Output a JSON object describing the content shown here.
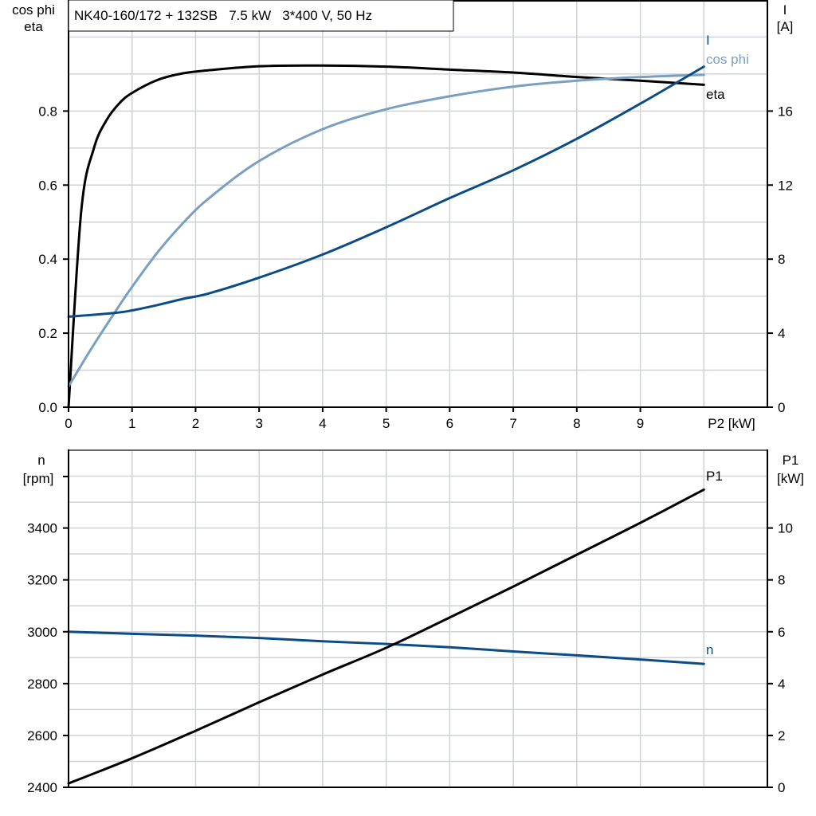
{
  "title": "NK40-160/172 + 132SB   7.5 kW   3*400 V, 50 Hz",
  "colors": {
    "black": "#000000",
    "dark_blue": "#0b4c87",
    "light_blue": "#7a9fc0",
    "grid": "#cfd2d6"
  },
  "chart_data": [
    {
      "type": "line",
      "title": "NK40-160/172 + 132SB   7.5 kW   3*400 V, 50 Hz",
      "xlabel": "P2 [kW]",
      "ylabel_left": [
        "cos phi",
        "eta"
      ],
      "ylabel_right": [
        "I",
        "[A]"
      ],
      "xlim": [
        0,
        11
      ],
      "ylim_left": [
        0,
        1.1
      ],
      "ylim_right": [
        0,
        22
      ],
      "x_ticks": [
        "0",
        "1",
        "2",
        "3",
        "4",
        "5",
        "6",
        "7",
        "8",
        "9"
      ],
      "y_ticks_left": [
        "0.0",
        "0.2",
        "0.4",
        "0.6",
        "0.8"
      ],
      "y_ticks_right": [
        "0",
        "4",
        "8",
        "12",
        "16"
      ],
      "grid": true,
      "series": [
        {
          "name": "eta",
          "axis": "left",
          "color": "#000000",
          "x": [
            0,
            0.2,
            0.4,
            0.6,
            0.8,
            1.0,
            1.4,
            1.8,
            2.2,
            3,
            4,
            5,
            6,
            7,
            8,
            9,
            10
          ],
          "y": [
            0,
            0.53,
            0.7,
            0.776,
            0.821,
            0.849,
            0.884,
            0.902,
            0.91,
            0.921,
            0.923,
            0.92,
            0.912,
            0.904,
            0.892,
            0.882,
            0.871
          ]
        },
        {
          "name": "cos phi",
          "axis": "left",
          "color": "#7a9fc0",
          "x": [
            0,
            0.34,
            0.72,
            1.0,
            1.4,
            1.8,
            2.2,
            3,
            4,
            5,
            6,
            7,
            8,
            9,
            10
          ],
          "y": [
            0.056,
            0.153,
            0.254,
            0.325,
            0.418,
            0.497,
            0.563,
            0.665,
            0.751,
            0.805,
            0.84,
            0.866,
            0.882,
            0.892,
            0.898
          ]
        },
        {
          "name": "I",
          "axis": "right",
          "color": "#0b4c87",
          "x": [
            0,
            0.72,
            1.0,
            1.4,
            1.8,
            2.2,
            3,
            4,
            5,
            6,
            7,
            8,
            9,
            10
          ],
          "y": [
            4.89,
            5.09,
            5.23,
            5.52,
            5.85,
            6.14,
            7.0,
            8.25,
            9.72,
            11.3,
            12.8,
            14.5,
            16.4,
            18.4
          ]
        }
      ]
    },
    {
      "type": "line",
      "xlabel": "",
      "ylabel_left": [
        "n",
        "[rpm]"
      ],
      "ylabel_right": [
        "P1",
        "[kW]"
      ],
      "xlim": [
        0,
        11
      ],
      "ylim_left": [
        2400,
        3700
      ],
      "ylim_right": [
        0,
        13
      ],
      "y_ticks_left": [
        "2400",
        "2600",
        "2800",
        "3000",
        "3200",
        "3400"
      ],
      "y_ticks_right": [
        "0",
        "2",
        "4",
        "6",
        "8",
        "10"
      ],
      "grid": true,
      "series": [
        {
          "name": "n",
          "axis": "left",
          "color": "#0b4c87",
          "x": [
            0,
            1,
            2,
            3,
            4,
            5,
            6,
            7,
            8,
            9,
            10
          ],
          "y": [
            3000,
            2992,
            2985,
            2976,
            2963,
            2953,
            2940,
            2924,
            2909,
            2893,
            2876
          ]
        },
        {
          "name": "P1",
          "axis": "right",
          "color": "#000000",
          "x": [
            0,
            1,
            2,
            3,
            4,
            5,
            6,
            7,
            8,
            9,
            10
          ],
          "y": [
            0.15,
            1.12,
            2.18,
            3.28,
            4.35,
            5.38,
            6.55,
            7.74,
            8.97,
            10.2,
            11.48
          ]
        }
      ]
    }
  ]
}
